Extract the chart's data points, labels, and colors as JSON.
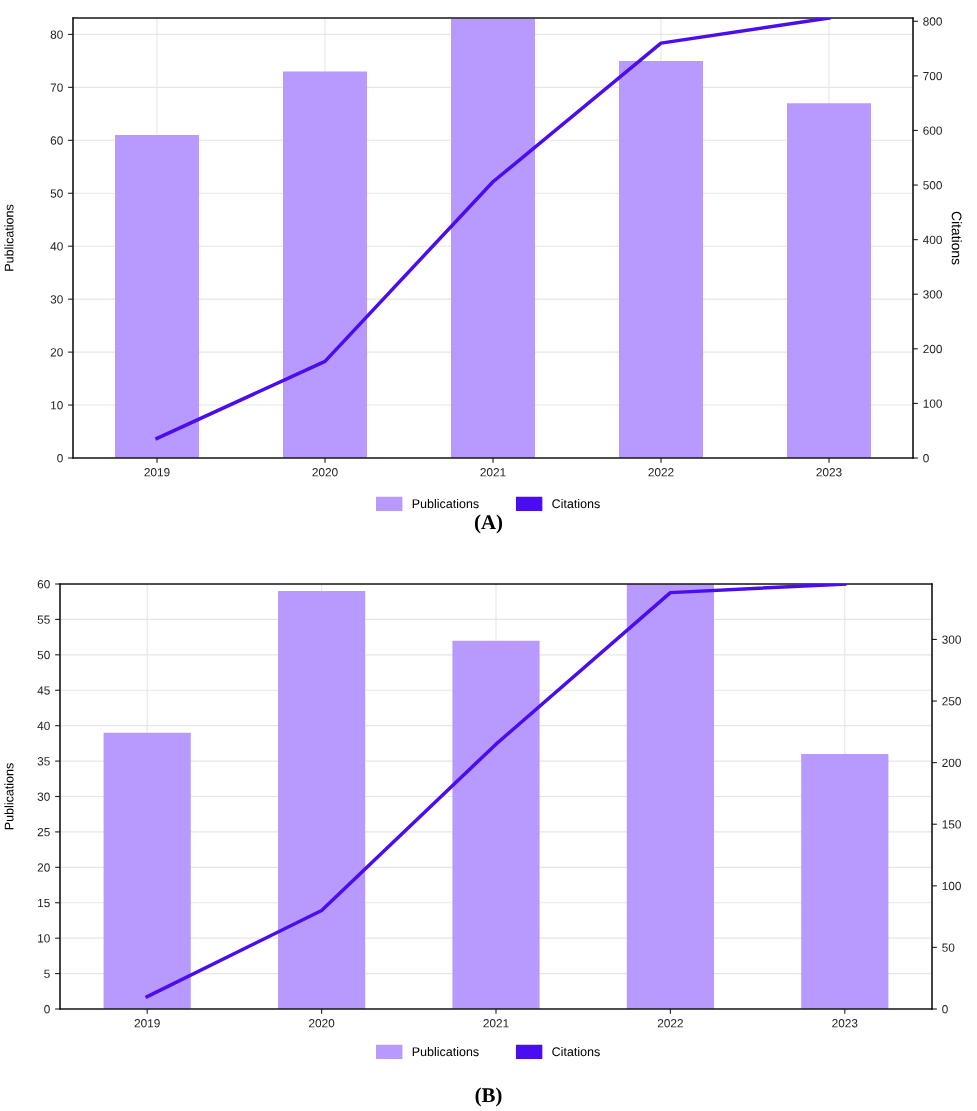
{
  "chart_data": [
    {
      "type": "bar",
      "categories": [
        "2019",
        "2020",
        "2021",
        "2022",
        "2023"
      ],
      "ylabel": "Publications",
      "y2label": "Citations",
      "series": [
        {
          "name": "Publications",
          "color": "#b899fe",
          "values": [
            61,
            73,
            83,
            75,
            67
          ]
        },
        {
          "name": "Citations",
          "type": "line",
          "axis": "y2",
          "color": "#4a0cf0",
          "values": [
            36,
            177,
            506,
            760,
            806
          ]
        }
      ],
      "ylim": [
        0,
        83.1
      ],
      "yticks": [
        0,
        10,
        20,
        30,
        40,
        50,
        60,
        70,
        80
      ],
      "y2lim": [
        0,
        806
      ],
      "y2ticks": [
        0,
        100,
        200,
        300,
        400,
        500,
        600,
        700,
        800
      ],
      "grid": true,
      "legend": "bottom",
      "annotations": [
        "(A)"
      ]
    },
    {
      "type": "bar",
      "categories": [
        "2019",
        "2020",
        "2021",
        "2022",
        "2023"
      ],
      "ylabel": "Publications",
      "series": [
        {
          "name": "Publications",
          "color": "#b899fe",
          "values": [
            39,
            59,
            52,
            60,
            36
          ]
        },
        {
          "name": "Citations",
          "type": "line",
          "axis": "y2",
          "color": "#4a0cf0",
          "values": [
            10,
            80,
            215,
            338,
            345
          ]
        }
      ],
      "ylim": [
        0,
        60
      ],
      "yticks": [
        0,
        5,
        10,
        15,
        20,
        25,
        30,
        35,
        40,
        45,
        50,
        55,
        60
      ],
      "y2lim": [
        0,
        345
      ],
      "y2ticks": [
        0,
        50,
        100,
        150,
        200,
        250,
        300
      ],
      "grid": true,
      "legend": "bottom",
      "annotations": [
        "(B)"
      ]
    }
  ]
}
